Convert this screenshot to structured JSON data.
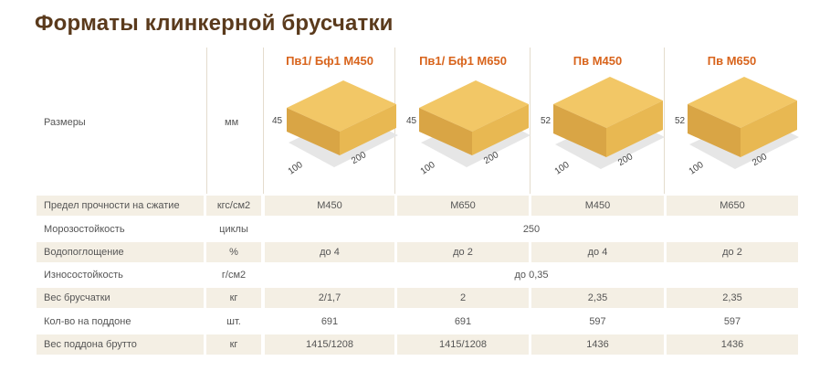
{
  "title": "Форматы клинкерной брусчатки",
  "size_row": {
    "label": "Размеры",
    "unit": "мм"
  },
  "formats": [
    {
      "name": "Пв1/ Бф1 М450",
      "height": "45",
      "width": "100",
      "length": "200"
    },
    {
      "name": "Пв1/ Бф1 М650",
      "height": "45",
      "width": "100",
      "length": "200"
    },
    {
      "name": "Пв М450",
      "height": "52",
      "width": "100",
      "length": "200"
    },
    {
      "name": "Пв М650",
      "height": "52",
      "width": "100",
      "length": "200"
    }
  ],
  "rows": [
    {
      "label": "Предел прочности на сжатие",
      "unit": "кгс/см2",
      "values": [
        "М450",
        "М650",
        "М450",
        "М650"
      ]
    },
    {
      "label": "Морозостойкость",
      "unit": "циклы",
      "merged": "250"
    },
    {
      "label": "Водопоглощение",
      "unit": "%",
      "values": [
        "до 4",
        "до 2",
        "до 4",
        "до 2"
      ]
    },
    {
      "label": "Износостойкость",
      "unit": "г/см2",
      "merged": "до 0,35"
    },
    {
      "label": "Вес брусчатки",
      "unit": "кг",
      "values": [
        "2/1,7",
        "2",
        "2,35",
        "2,35"
      ]
    },
    {
      "label": "Кол-во на поддоне",
      "unit": "шт.",
      "values": [
        "691",
        "691",
        "597",
        "597"
      ]
    },
    {
      "label": "Вес поддона брутто",
      "unit": "кг",
      "values": [
        "1415/1208",
        "1415/1208",
        "1436",
        "1436"
      ]
    }
  ],
  "colors": {
    "title": "#5a3a1c",
    "accent": "#d8641c",
    "shade": "#f4efe4",
    "brick": "#f0c060"
  }
}
